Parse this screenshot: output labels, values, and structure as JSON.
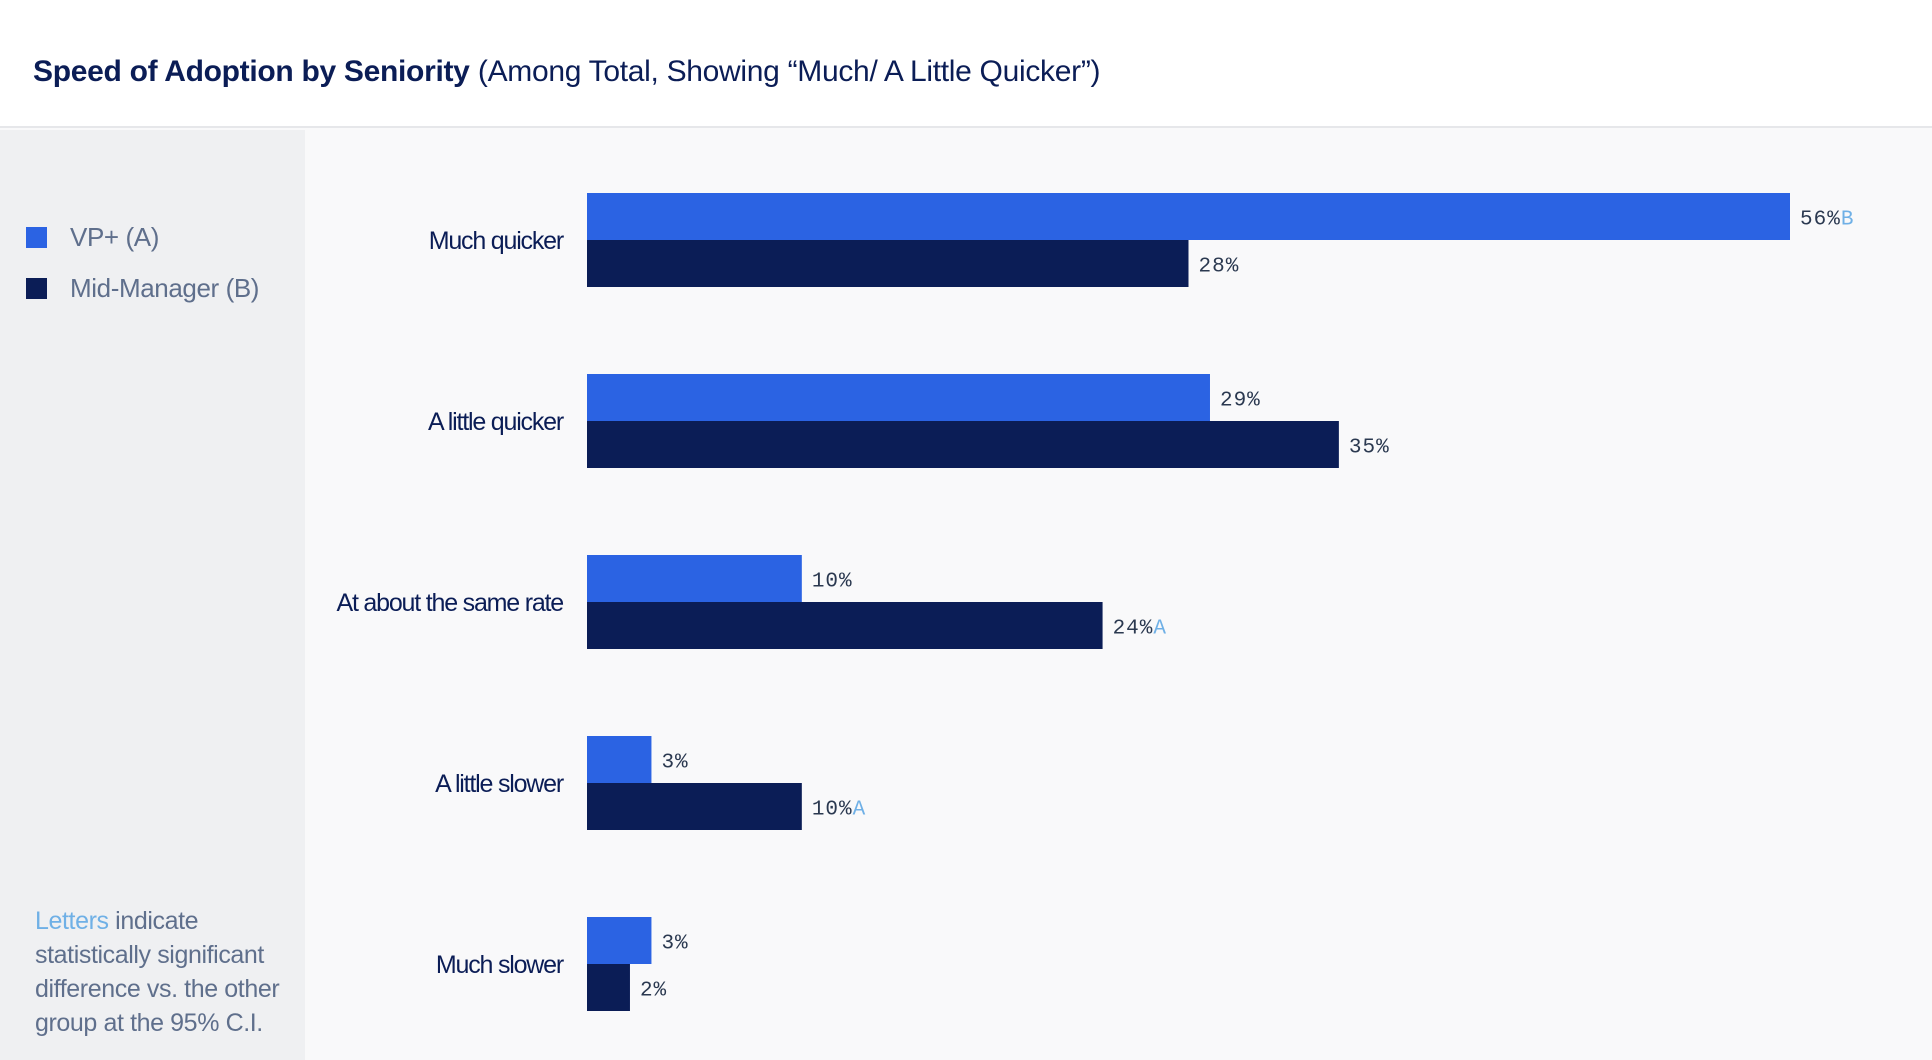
{
  "header": {
    "title": "Speed of Adoption by Seniority",
    "subtitle": "(Among Total, Showing “Much/ A Little Quicker”)"
  },
  "legend": [
    {
      "label": "VP+ (A)",
      "color": "#2b63e3"
    },
    {
      "label": "Mid-Manager (B)",
      "color": "#0b1d56"
    }
  ],
  "note": {
    "highlight": "Letters",
    "text": " indicate statistically significant difference vs. the other group at the 95% C.I."
  },
  "chart_data": {
    "type": "bar",
    "orientation": "horizontal",
    "categories": [
      "Much quicker",
      "A little quicker",
      "At about the same rate",
      "A little slower",
      "Much slower"
    ],
    "series": [
      {
        "name": "VP+ (A)",
        "color": "#2b63e3",
        "values": [
          56,
          29,
          10,
          3,
          3
        ],
        "labels": [
          "56%",
          "29%",
          "10%",
          "3%",
          "3%"
        ],
        "sig": [
          "B",
          "",
          "",
          "",
          ""
        ]
      },
      {
        "name": "Mid-Manager (B)",
        "color": "#0b1d56",
        "values": [
          28,
          35,
          24,
          10,
          2
        ],
        "labels": [
          "28%",
          "35%",
          "24%",
          "10%",
          "2%"
        ],
        "sig": [
          "",
          "",
          "A",
          "A",
          ""
        ]
      }
    ],
    "xlim": [
      0,
      56
    ],
    "grid": false,
    "legend": "left"
  }
}
